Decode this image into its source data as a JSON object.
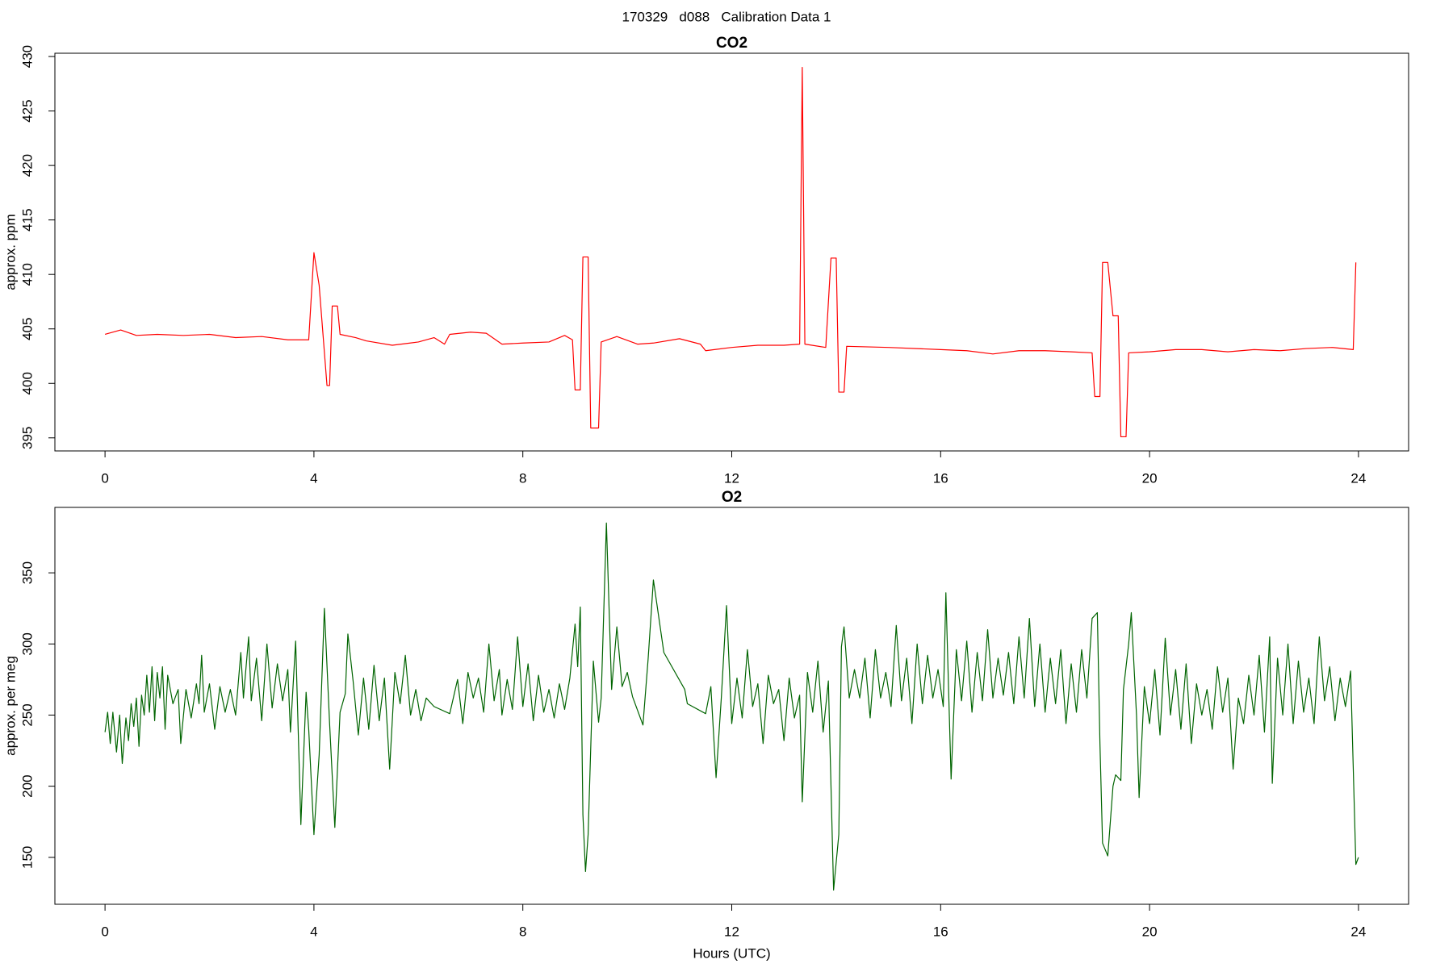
{
  "title": "170329   d088   Calibration Data 1",
  "chart_data": [
    {
      "type": "line",
      "title": "CO2",
      "ylabel": "approx. ppm",
      "xlim": [
        -0.96,
        24.96
      ],
      "xticks": [
        0,
        4,
        8,
        12,
        16,
        20,
        24
      ],
      "ylim": [
        393.8,
        430.3
      ],
      "yticks": [
        395,
        400,
        405,
        410,
        415,
        420,
        425,
        430
      ],
      "series": [
        {
          "name": "CO2",
          "color": "#ff0000",
          "x": [
            0,
            0.3,
            0.6,
            1,
            1.5,
            2,
            2.5,
            3,
            3.5,
            3.9,
            4.0,
            4.1,
            4.25,
            4.3,
            4.35,
            4.45,
            4.5,
            4.8,
            5,
            5.5,
            6,
            6.3,
            6.5,
            6.6,
            7,
            7.3,
            7.6,
            8,
            8.5,
            8.8,
            8.95,
            9.0,
            9.1,
            9.15,
            9.25,
            9.3,
            9.45,
            9.5,
            9.8,
            10.2,
            10.5,
            11,
            11.4,
            11.5,
            12,
            12.5,
            13,
            13.3,
            13.35,
            13.4,
            13.8,
            13.9,
            14.0,
            14.05,
            14.15,
            14.2,
            15,
            16,
            16.5,
            17,
            17.5,
            18,
            18.5,
            18.9,
            18.95,
            19.05,
            19.1,
            19.2,
            19.3,
            19.4,
            19.45,
            19.55,
            19.6,
            20,
            20.5,
            21,
            21.5,
            22,
            22.5,
            23,
            23.5,
            23.9,
            23.95
          ],
          "values": [
            404.5,
            404.9,
            404.4,
            404.5,
            404.4,
            404.5,
            404.2,
            404.3,
            404.0,
            404.0,
            412,
            409,
            399.8,
            399.8,
            407.1,
            407.1,
            404.5,
            404.2,
            403.9,
            403.5,
            403.8,
            404.2,
            403.6,
            404.5,
            404.7,
            404.6,
            403.6,
            403.7,
            403.8,
            404.4,
            404.0,
            399.4,
            399.4,
            411.6,
            411.6,
            395.9,
            395.9,
            403.8,
            404.3,
            403.6,
            403.7,
            404.1,
            403.6,
            403.0,
            403.3,
            403.5,
            403.5,
            403.6,
            429,
            403.6,
            403.3,
            411.5,
            411.5,
            399.2,
            399.2,
            403.4,
            403.3,
            403.1,
            403.0,
            402.7,
            403.0,
            403.0,
            402.9,
            402.8,
            398.8,
            398.8,
            411.1,
            411.1,
            406.2,
            406.2,
            395.1,
            395.1,
            402.8,
            402.9,
            403.1,
            403.1,
            402.9,
            403.1,
            403.0,
            403.2,
            403.3,
            403.1,
            411.1
          ]
        }
      ]
    },
    {
      "type": "line",
      "title": "O2",
      "ylabel": "approx. per meg",
      "xlabel": "Hours (UTC)",
      "xlim": [
        -0.96,
        24.96
      ],
      "xticks": [
        0,
        4,
        8,
        12,
        16,
        20,
        24
      ],
      "ylim": [
        117,
        396
      ],
      "yticks": [
        150,
        200,
        250,
        300,
        350
      ],
      "series": [
        {
          "name": "O2",
          "color": "#006400",
          "x": [
            0,
            0.05,
            0.1,
            0.15,
            0.22,
            0.28,
            0.33,
            0.4,
            0.45,
            0.5,
            0.55,
            0.6,
            0.65,
            0.7,
            0.75,
            0.8,
            0.85,
            0.9,
            0.95,
            1.0,
            1.05,
            1.1,
            1.15,
            1.2,
            1.3,
            1.4,
            1.45,
            1.55,
            1.65,
            1.75,
            1.8,
            1.85,
            1.9,
            2.0,
            2.1,
            2.2,
            2.3,
            2.4,
            2.5,
            2.6,
            2.65,
            2.75,
            2.8,
            2.9,
            3.0,
            3.1,
            3.2,
            3.3,
            3.4,
            3.5,
            3.55,
            3.65,
            3.75,
            3.85,
            3.9,
            4.0,
            4.1,
            4.2,
            4.3,
            4.4,
            4.5,
            4.6,
            4.65,
            4.75,
            4.85,
            4.95,
            5.05,
            5.15,
            5.25,
            5.35,
            5.45,
            5.55,
            5.65,
            5.75,
            5.85,
            5.95,
            6.05,
            6.15,
            6.3,
            6.6,
            6.75,
            6.85,
            6.95,
            7.05,
            7.15,
            7.25,
            7.35,
            7.45,
            7.55,
            7.6,
            7.7,
            7.8,
            7.9,
            8.0,
            8.1,
            8.2,
            8.3,
            8.4,
            8.5,
            8.6,
            8.7,
            8.8,
            8.9,
            9.0,
            9.05,
            9.1,
            9.15,
            9.2,
            9.25,
            9.35,
            9.45,
            9.5,
            9.6,
            9.7,
            9.8,
            9.9,
            10.0,
            10.1,
            10.3,
            10.4,
            10.5,
            10.7,
            11.1,
            11.15,
            11.5,
            11.6,
            11.7,
            11.8,
            11.9,
            12.0,
            12.1,
            12.2,
            12.3,
            12.4,
            12.5,
            12.6,
            12.7,
            12.8,
            12.9,
            13.0,
            13.1,
            13.2,
            13.3,
            13.35,
            13.45,
            13.55,
            13.65,
            13.75,
            13.85,
            13.95,
            14.05,
            14.1,
            14.15,
            14.25,
            14.35,
            14.45,
            14.55,
            14.65,
            14.75,
            14.85,
            14.95,
            15.05,
            15.15,
            15.25,
            15.35,
            15.45,
            15.55,
            15.65,
            15.75,
            15.85,
            15.95,
            16.05,
            16.1,
            16.2,
            16.3,
            16.4,
            16.5,
            16.6,
            16.7,
            16.8,
            16.9,
            17.0,
            17.1,
            17.2,
            17.3,
            17.4,
            17.5,
            17.6,
            17.7,
            17.8,
            17.9,
            18.0,
            18.1,
            18.2,
            18.3,
            18.4,
            18.5,
            18.6,
            18.7,
            18.8,
            18.9,
            19.0,
            19.05,
            19.1,
            19.2,
            19.3,
            19.35,
            19.45,
            19.5,
            19.6,
            19.65,
            19.75,
            19.8,
            19.9,
            20.0,
            20.1,
            20.2,
            20.3,
            20.4,
            20.5,
            20.6,
            20.7,
            20.8,
            20.9,
            21.0,
            21.1,
            21.2,
            21.3,
            21.4,
            21.5,
            21.6,
            21.7,
            21.8,
            21.9,
            22.0,
            22.1,
            22.2,
            22.3,
            22.35,
            22.45,
            22.55,
            22.65,
            22.75,
            22.85,
            22.95,
            23.05,
            23.15,
            23.25,
            23.35,
            23.45,
            23.55,
            23.65,
            23.75,
            23.85,
            23.95,
            24.0
          ],
          "values": [
            238,
            252,
            230,
            252,
            224,
            250,
            216,
            248,
            232,
            258,
            242,
            262,
            228,
            264,
            250,
            278,
            252,
            284,
            246,
            280,
            262,
            284,
            240,
            278,
            258,
            268,
            230,
            268,
            248,
            272,
            258,
            292,
            252,
            272,
            240,
            270,
            252,
            268,
            250,
            294,
            262,
            305,
            260,
            290,
            246,
            300,
            255,
            286,
            260,
            282,
            238,
            302,
            173,
            266,
            240,
            166,
            222,
            325,
            244,
            171,
            252,
            265,
            307,
            274,
            236,
            276,
            240,
            285,
            246,
            276,
            212,
            280,
            258,
            292,
            250,
            268,
            246,
            262,
            256,
            251,
            275,
            244,
            280,
            262,
            276,
            252,
            300,
            260,
            282,
            250,
            275,
            254,
            305,
            256,
            286,
            246,
            278,
            252,
            268,
            248,
            272,
            254,
            276,
            314,
            284,
            326,
            180,
            140,
            166,
            288,
            245,
            262,
            385,
            268,
            312,
            270,
            280,
            263,
            243,
            290,
            345,
            294,
            268,
            258,
            251,
            270,
            206,
            262,
            327,
            244,
            276,
            248,
            296,
            256,
            272,
            230,
            278,
            258,
            268,
            232,
            276,
            248,
            264,
            189,
            280,
            252,
            288,
            238,
            274,
            127,
            166,
            298,
            312,
            262,
            282,
            262,
            290,
            248,
            296,
            262,
            280,
            256,
            313,
            260,
            290,
            244,
            300,
            258,
            292,
            262,
            282,
            256,
            336,
            205,
            296,
            260,
            302,
            252,
            294,
            260,
            310,
            262,
            290,
            264,
            294,
            258,
            305,
            262,
            318,
            256,
            300,
            252,
            290,
            258,
            296,
            244,
            286,
            252,
            296,
            262,
            318,
            322,
            230,
            160,
            151,
            200,
            208,
            204,
            268,
            300,
            322,
            250,
            192,
            270,
            244,
            282,
            236,
            304,
            250,
            282,
            240,
            286,
            230,
            272,
            250,
            268,
            240,
            284,
            252,
            276,
            212,
            262,
            244,
            278,
            250,
            292,
            238,
            305,
            202,
            290,
            250,
            300,
            244,
            288,
            252,
            276,
            244,
            305,
            260,
            284,
            246,
            276,
            256,
            281,
            145,
            150
          ]
        }
      ]
    }
  ]
}
